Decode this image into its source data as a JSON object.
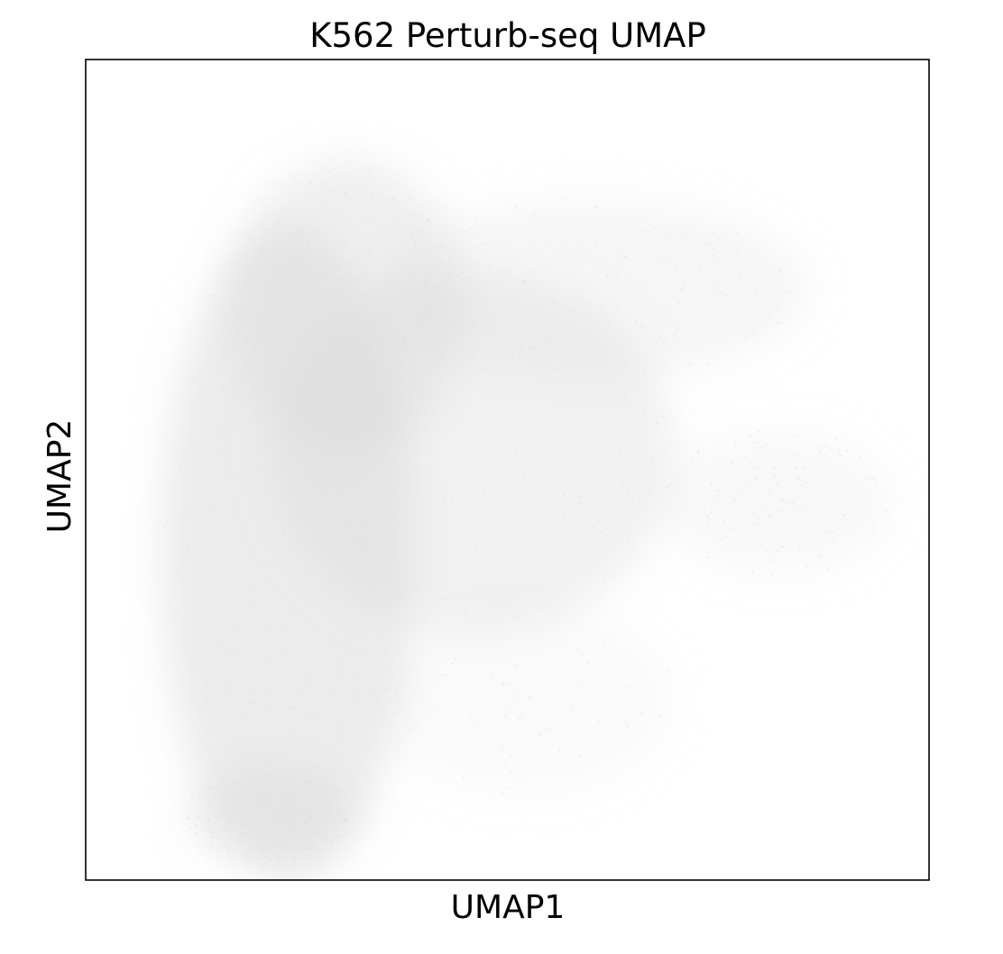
{
  "chart_data": {
    "type": "scatter",
    "title": "K562 Perturb-seq UMAP",
    "xlabel": "UMAP1",
    "ylabel": "UMAP2",
    "xlim": [
      0,
      100
    ],
    "ylim": [
      0,
      100
    ],
    "show_ticks": false,
    "grid": false,
    "legend": "none",
    "point_color": "#d9d9d9",
    "frame_color": "#000000",
    "density_regions": [
      {
        "name": "left-lobe",
        "cx": 24,
        "cy": 40,
        "rx": 15,
        "ry": 40,
        "density": 0.95
      },
      {
        "name": "left-lobe-top",
        "cx": 31,
        "cy": 70,
        "rx": 14,
        "ry": 18,
        "density": 0.75
      },
      {
        "name": "center-body",
        "cx": 46,
        "cy": 52,
        "rx": 24,
        "ry": 22,
        "density": 0.65
      },
      {
        "name": "upper-wing",
        "cx": 60,
        "cy": 72,
        "rx": 26,
        "ry": 11,
        "density": 0.45
      },
      {
        "name": "right-tip",
        "cx": 82,
        "cy": 46,
        "rx": 14,
        "ry": 9,
        "density": 0.35
      },
      {
        "name": "lower-lobe",
        "cx": 52,
        "cy": 22,
        "rx": 18,
        "ry": 12,
        "density": 0.25
      },
      {
        "name": "bottom-tail",
        "cx": 22,
        "cy": 8,
        "rx": 10,
        "ry": 6,
        "density": 0.7
      }
    ]
  }
}
